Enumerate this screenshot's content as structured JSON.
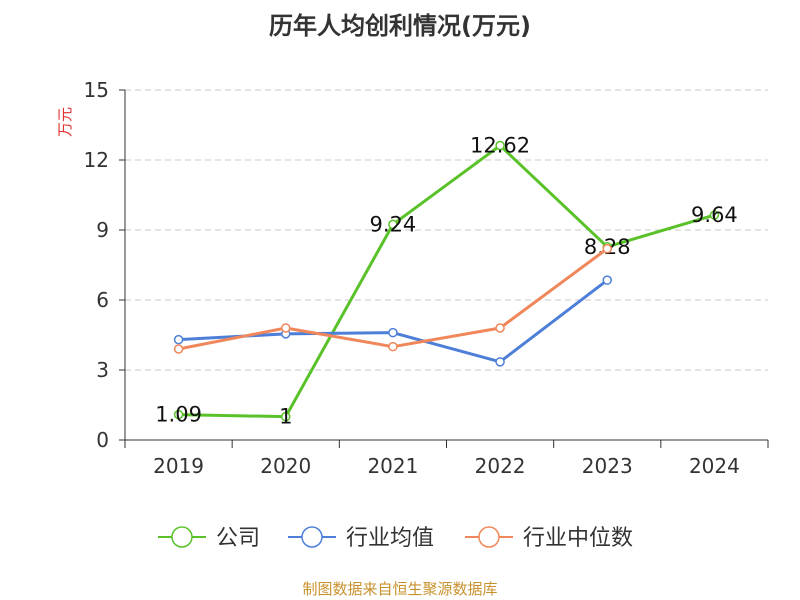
{
  "chart_data": {
    "type": "line",
    "title": "历年人均创利情况(万元)",
    "ylabel": "万元",
    "xlabel": "",
    "ylim": [
      0,
      15
    ],
    "yticks": [
      0,
      3,
      6,
      9,
      12,
      15
    ],
    "categories": [
      "2019",
      "2020",
      "2021",
      "2022",
      "2023",
      "2024"
    ],
    "grid": true,
    "legend_position": "bottom",
    "series": [
      {
        "name": "公司",
        "color": "#5ac229",
        "values": [
          1.09,
          1,
          9.24,
          12.62,
          8.28,
          9.64
        ],
        "labels": [
          "1.09",
          "1",
          "9.24",
          "12.62",
          "8.28",
          "9.64"
        ]
      },
      {
        "name": "行业均值",
        "color": "#4e7fd8",
        "values": [
          4.3,
          4.55,
          4.6,
          3.35,
          6.85,
          null
        ],
        "labels": null
      },
      {
        "name": "行业中位数",
        "color": "#f0875a",
        "values": [
          3.9,
          4.8,
          4.0,
          4.8,
          8.2,
          null
        ],
        "labels": null
      }
    ]
  },
  "source": "制图数据来自恒生聚源数据库"
}
